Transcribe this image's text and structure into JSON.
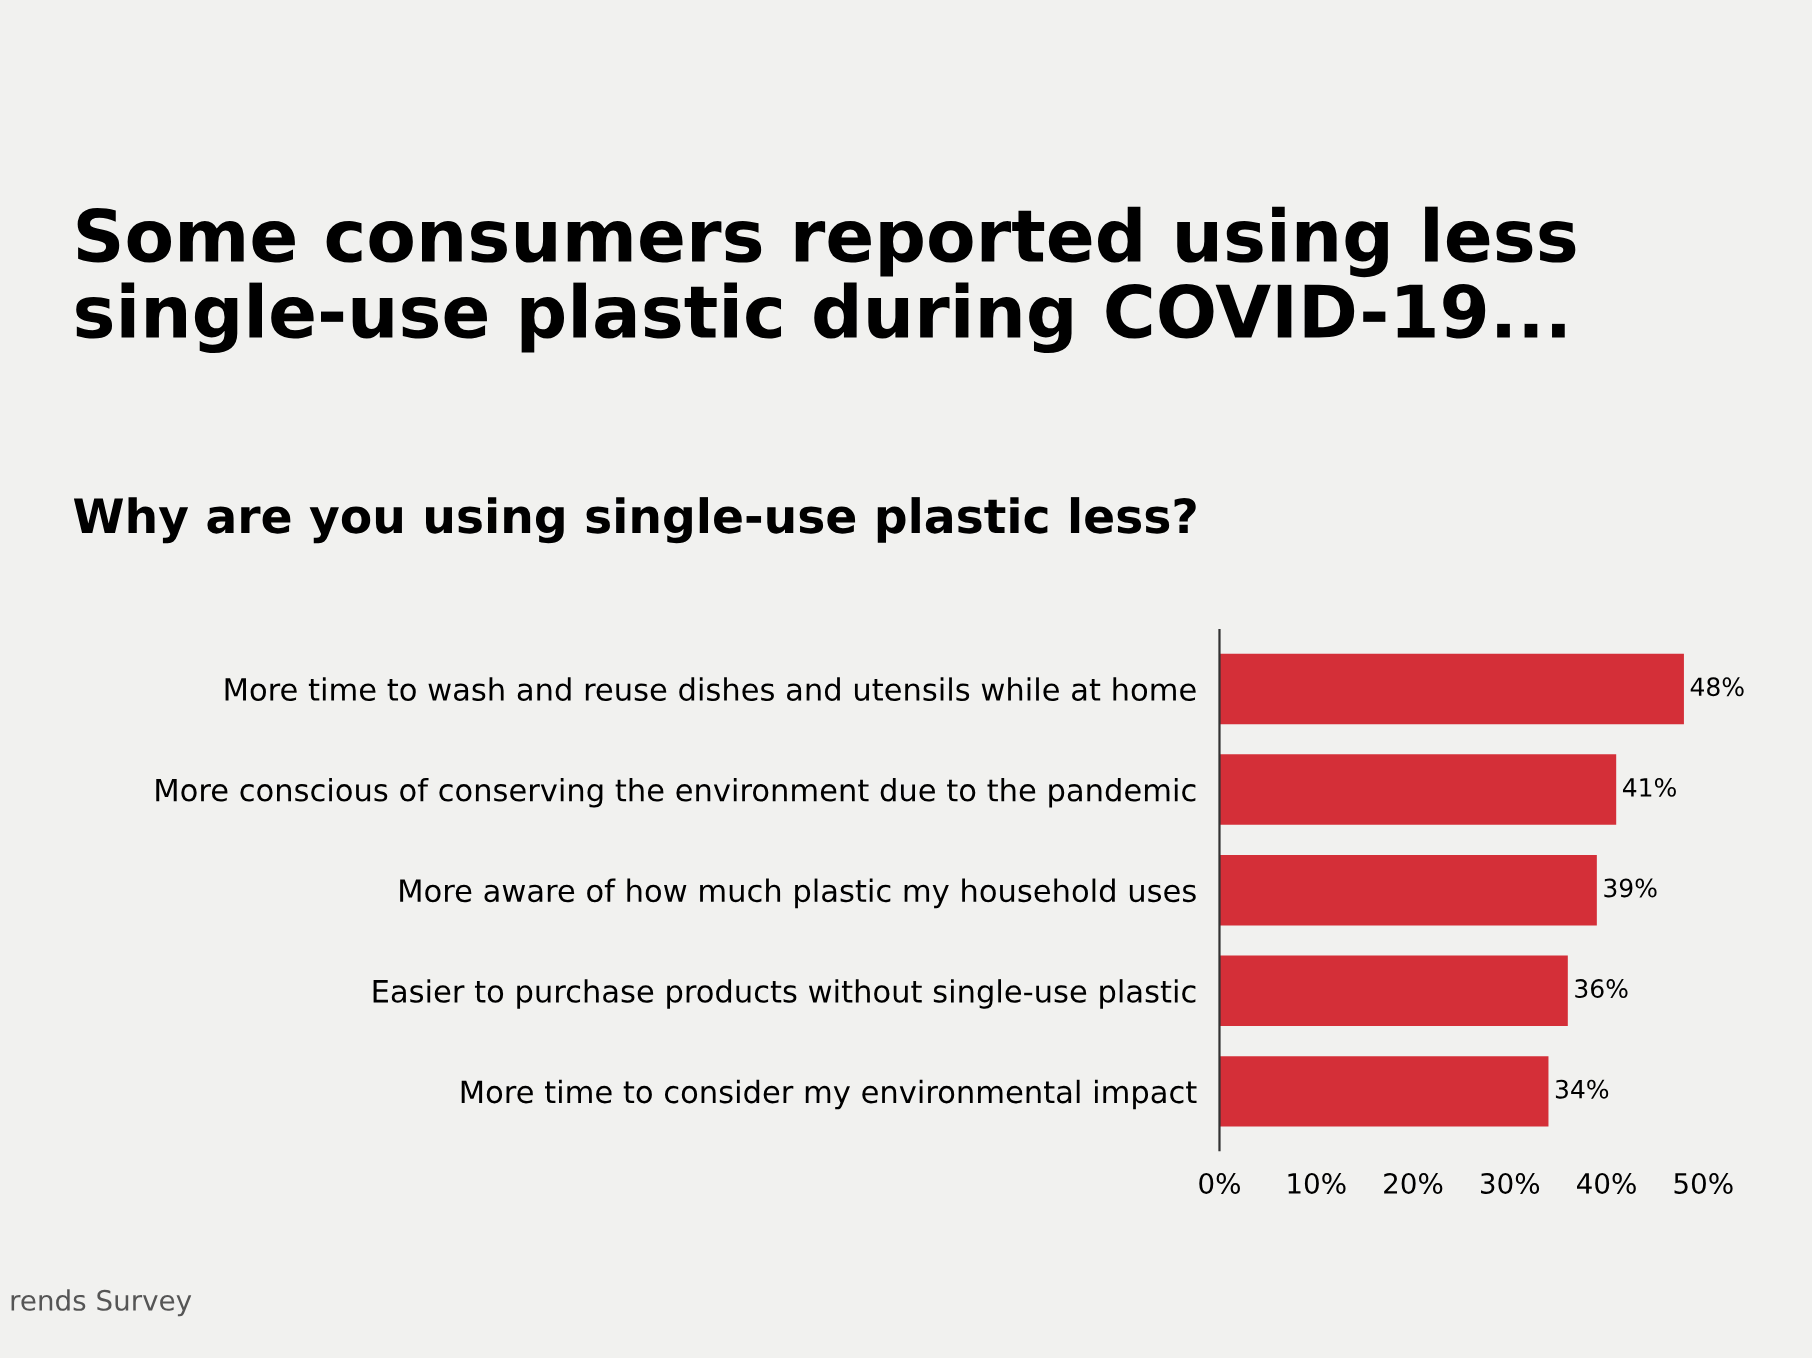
{
  "chart_data": {
    "type": "bar",
    "orientation": "horizontal",
    "title": "Some consumers reported using less\nsingle-use plastic during COVID-19...",
    "subtitle": "Why are you using single-use plastic less?",
    "categories": [
      "More time to wash and reuse dishes and utensils while at home",
      "More conscious of conserving the environment due to the pandemic",
      "More aware of how much plastic my household uses",
      "Easier to purchase products without single-use plastic",
      "More time to consider my environmental impact"
    ],
    "values": [
      48,
      41,
      39,
      36,
      34
    ],
    "value_labels": [
      "48%",
      "41%",
      "39%",
      "36%",
      "34%"
    ],
    "color": "#d42f38",
    "xlim": [
      0,
      50
    ],
    "xticks": [
      {
        "value": 0,
        "label": "0%"
      },
      {
        "value": 10,
        "label": "10%"
      },
      {
        "value": 20,
        "label": "20%"
      },
      {
        "value": 30,
        "label": "30%"
      },
      {
        "value": 40,
        "label": "40%"
      },
      {
        "value": 50,
        "label": "50%"
      }
    ],
    "grid": false,
    "legend": false,
    "annotations": [
      "rends Survey"
    ]
  }
}
